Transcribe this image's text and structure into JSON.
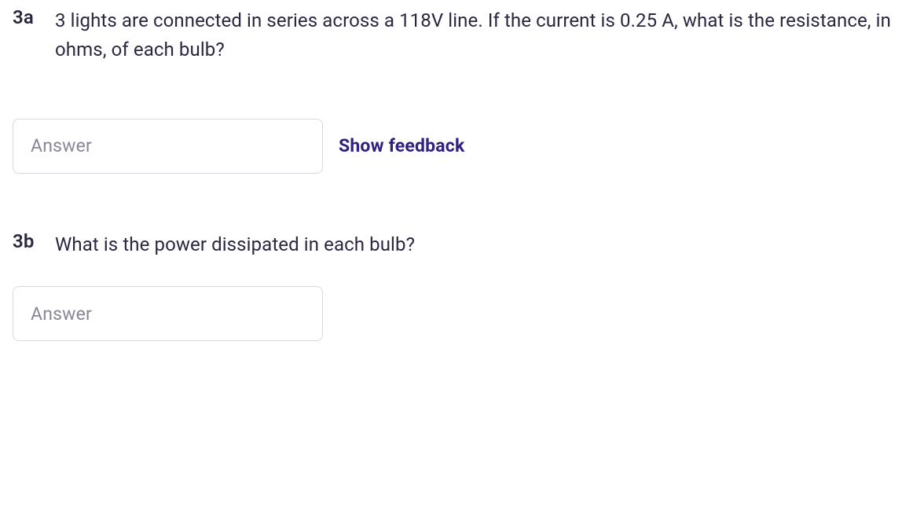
{
  "questions": [
    {
      "number": "3a",
      "text": "3 lights are connected in series across a 118V line. If the current is 0.25 A, what is the resistance, in ohms, of each bulb?",
      "answer_placeholder": "Answer",
      "feedback_label": "Show feedback"
    },
    {
      "number": "3b",
      "text": "What is the power dissipated in each bulb?",
      "answer_placeholder": "Answer"
    }
  ],
  "colors": {
    "text": "#2d2640",
    "placeholder": "#8b8697",
    "input_border": "#d9d7df",
    "feedback_link": "#2f2180",
    "background": "#ffffff"
  },
  "typography": {
    "question_fontsize": 24,
    "number_fontweight": 600,
    "body_fontweight": 400,
    "feedback_fontsize": 23,
    "feedback_fontweight": 700,
    "input_fontsize": 23
  },
  "layout": {
    "input_width": 395,
    "input_height": 70,
    "input_radius": 8
  }
}
